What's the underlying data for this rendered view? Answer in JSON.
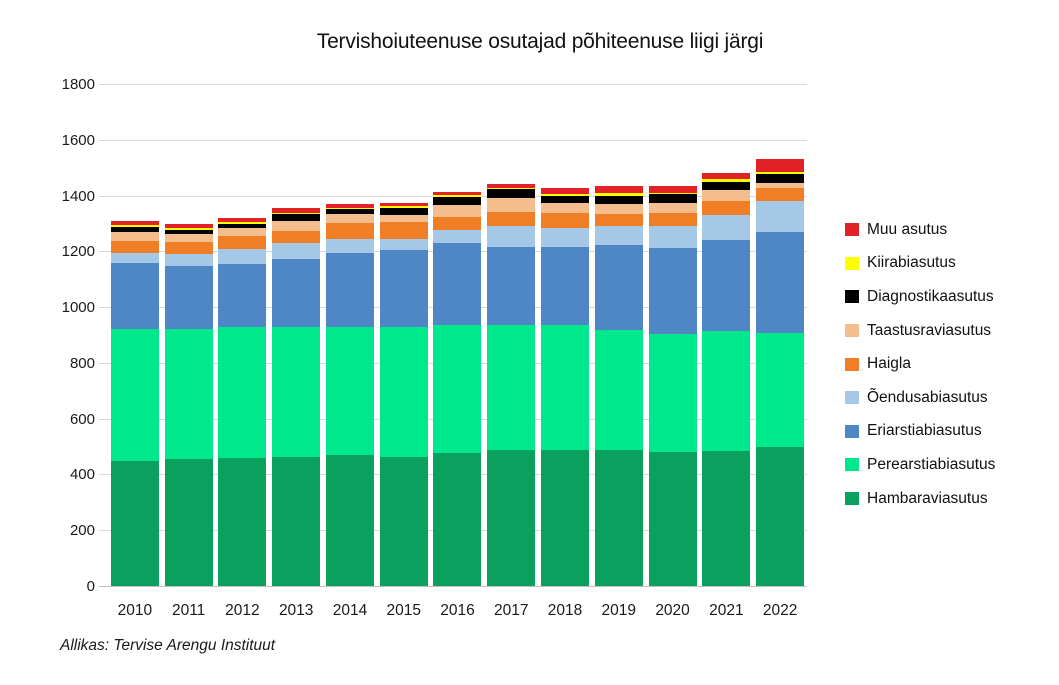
{
  "title": "Tervishoiuteenuse osutajad põhiteenuse liigi järgi",
  "source": "Allikas: Tervise Arengu Instituut",
  "colors": {
    "grid": "#d9d9d9",
    "axis": "#bfbfbf",
    "background": "#ffffff"
  },
  "chart_data": {
    "type": "bar",
    "stacked": true,
    "title": "Tervishoiuteenuse osutajad põhiteenuse liigi järgi",
    "xlabel": "",
    "ylabel": "",
    "ylim": [
      0,
      1800
    ],
    "yticks": [
      0,
      200,
      400,
      600,
      800,
      1000,
      1200,
      1400,
      1600,
      1800
    ],
    "grid": true,
    "legend_position": "right",
    "legend_order": "top-to-bottom reverse of stacking",
    "categories": [
      "2010",
      "2011",
      "2012",
      "2013",
      "2014",
      "2015",
      "2016",
      "2017",
      "2018",
      "2019",
      "2020",
      "2021",
      "2022"
    ],
    "series": [
      {
        "name": "Hambaraviasutus",
        "color": "#0aa05e",
        "values": [
          447,
          456,
          459,
          464,
          468,
          463,
          476,
          486,
          488,
          486,
          480,
          485,
          500
        ]
      },
      {
        "name": "Perearstiabiasutus",
        "color": "#00e88c",
        "values": [
          475,
          466,
          469,
          464,
          460,
          465,
          460,
          450,
          448,
          432,
          425,
          429,
          408
        ]
      },
      {
        "name": "Eriarstiabiasutus",
        "color": "#4e86c6",
        "values": [
          235,
          225,
          225,
          246,
          267,
          277,
          293,
          279,
          281,
          306,
          308,
          326,
          362
        ]
      },
      {
        "name": "Õendusabiasutus",
        "color": "#a5c8e7",
        "values": [
          36,
          42,
          54,
          57,
          50,
          40,
          46,
          75,
          68,
          67,
          78,
          90,
          109
        ]
      },
      {
        "name": "Haigla",
        "color": "#f07e27",
        "values": [
          45,
          44,
          47,
          43,
          56,
          59,
          50,
          53,
          52,
          43,
          48,
          52,
          48
        ]
      },
      {
        "name": "Taastusraviasutus",
        "color": "#f4bd8d",
        "values": [
          33,
          29,
          29,
          36,
          32,
          27,
          42,
          47,
          36,
          35,
          33,
          39,
          20
        ]
      },
      {
        "name": "Diagnostikaasutus",
        "color": "#000000",
        "values": [
          18,
          15,
          16,
          23,
          19,
          24,
          28,
          32,
          27,
          30,
          33,
          28,
          30
        ]
      },
      {
        "name": "Kiirabiasutus",
        "color": "#ffff00",
        "values": [
          6,
          6,
          5,
          6,
          5,
          6,
          7,
          6,
          5,
          10,
          5,
          10,
          8
        ]
      },
      {
        "name": "Muu asutus",
        "color": "#e32227",
        "values": [
          15,
          14,
          17,
          15,
          12,
          11,
          10,
          12,
          21,
          24,
          24,
          21,
          45
        ]
      }
    ],
    "totals": [
      1310,
      1297,
      1321,
      1354,
      1369,
      1372,
      1412,
      1440,
      1426,
      1433,
      1434,
      1480,
      1530
    ]
  }
}
